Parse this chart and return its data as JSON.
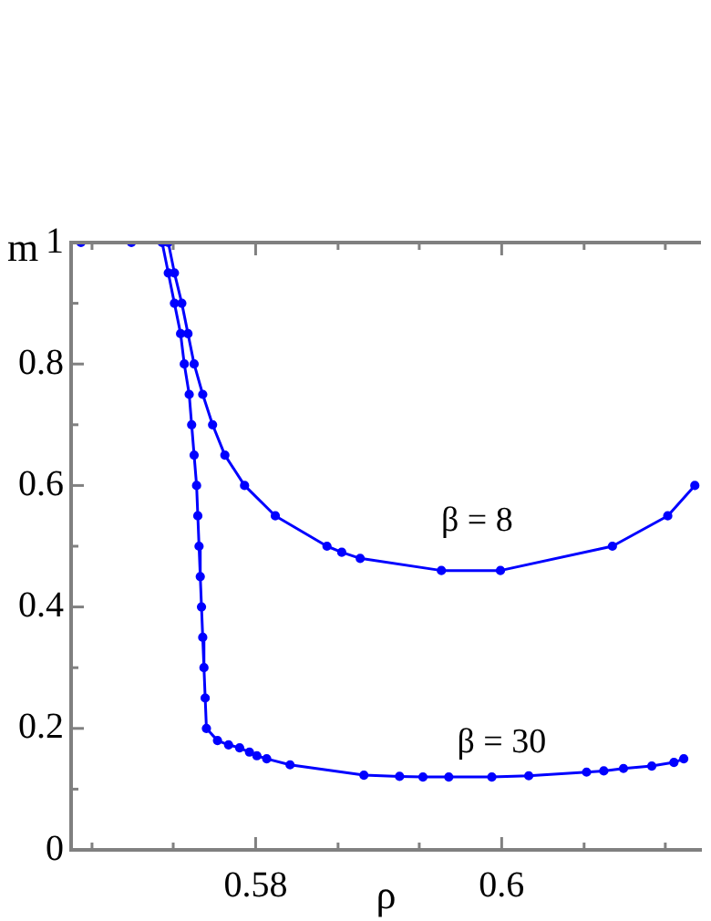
{
  "chart_data": {
    "type": "line",
    "xlabel": "ρ",
    "ylabel": "m",
    "xlim": [
      0.565,
      0.6162
    ],
    "ylim": [
      0,
      1
    ],
    "xticks": [
      {
        "value": 0.5667,
        "label": null
      },
      {
        "value": 0.5733,
        "label": null
      },
      0.58,
      {
        "value": 0.5867,
        "label": null
      },
      {
        "value": 0.5933,
        "label": null
      },
      0.6,
      {
        "value": 0.6067,
        "label": null
      },
      {
        "value": 0.6133,
        "label": null
      }
    ],
    "yticks": [
      0,
      {
        "value": 0.1,
        "label": null
      },
      0.2,
      {
        "value": 0.3,
        "label": null
      },
      0.4,
      {
        "value": 0.5,
        "label": null
      },
      0.6,
      {
        "value": 0.7,
        "label": null
      },
      0.8,
      {
        "value": 0.9,
        "label": null
      },
      1
    ],
    "grid": false,
    "legend": false,
    "marker": "circle",
    "line_style": "solid",
    "series": [
      {
        "color": "#0000ff",
        "x": [
          0.5658,
          0.5699,
          0.5724,
          0.5729,
          0.5734,
          0.5739,
          0.5742,
          0.5746,
          0.5748,
          0.575,
          0.5752,
          0.5753,
          0.5754,
          0.5755,
          0.5756,
          0.5757,
          0.5758,
          0.5759,
          0.576,
          0.5769,
          0.5778,
          0.5787,
          0.5795,
          0.5801,
          0.5809,
          0.5828,
          0.5888,
          0.5917,
          0.5936,
          0.5957,
          0.5992,
          0.6022,
          0.6069,
          0.6083,
          0.6099,
          0.6122,
          0.614,
          0.6148
        ],
        "values": [
          1,
          1,
          1,
          0.95,
          0.9,
          0.85,
          0.8,
          0.75,
          0.7,
          0.65,
          0.6,
          0.55,
          0.5,
          0.45,
          0.4,
          0.35,
          0.3,
          0.25,
          0.2,
          0.18,
          0.173,
          0.168,
          0.161,
          0.155,
          0.15,
          0.14,
          0.123,
          0.121,
          0.12,
          0.12,
          0.12,
          0.122,
          0.128,
          0.13,
          0.134,
          0.138,
          0.144,
          0.15
        ]
      },
      {
        "color": "#0000ff",
        "x": [
          0.5729,
          0.5734,
          0.574,
          0.5745,
          0.575,
          0.5757,
          0.5765,
          0.5775,
          0.5791,
          0.5816,
          0.5858,
          0.587,
          0.5885,
          0.5951,
          0.5999,
          0.609,
          0.6135,
          0.6157
        ],
        "values": [
          1,
          0.95,
          0.9,
          0.85,
          0.8,
          0.75,
          0.7,
          0.65,
          0.6,
          0.55,
          0.5,
          0.49,
          0.48,
          0.46,
          0.46,
          0.5,
          0.55,
          0.6
        ]
      }
    ],
    "annotations": [
      "β = 8",
      "β = 30"
    ]
  }
}
